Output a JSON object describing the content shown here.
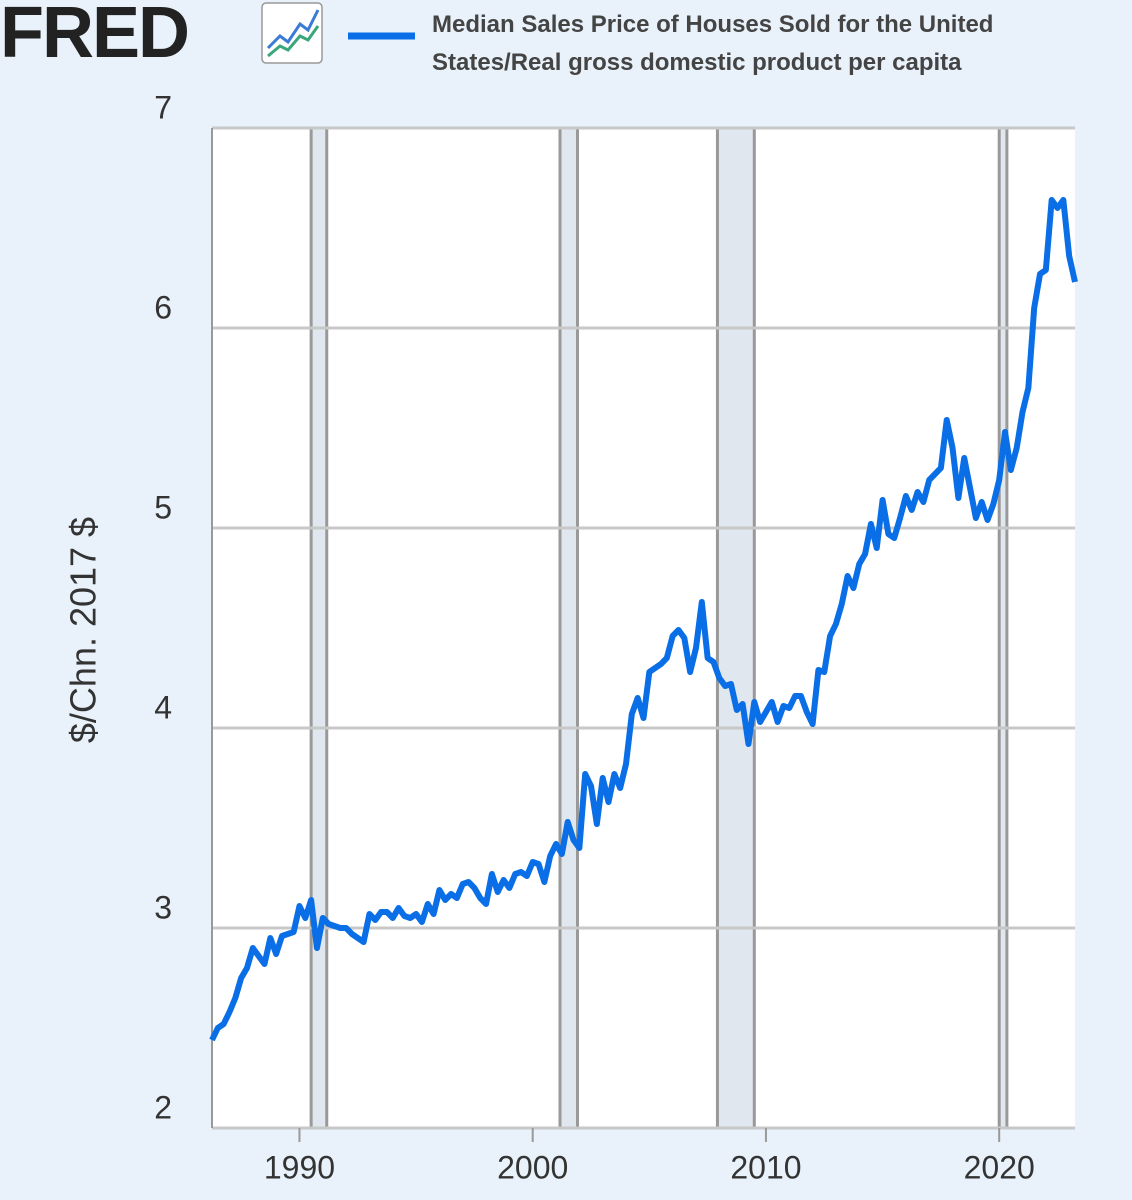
{
  "logo": "FRED",
  "chart_data": {
    "type": "line",
    "y_label": "$/Chn. 2017 $",
    "x": [
      1986.25,
      1986.5,
      1986.75,
      1987.0,
      1987.25,
      1987.5,
      1987.75,
      1988.0,
      1988.25,
      1988.5,
      1988.75,
      1989.0,
      1989.25,
      1989.5,
      1989.75,
      1990.0,
      1990.25,
      1990.5,
      1990.75,
      1991.0,
      1991.25,
      1991.5,
      1991.75,
      1992.0,
      1992.25,
      1992.5,
      1992.75,
      1993.0,
      1993.25,
      1993.5,
      1993.75,
      1994.0,
      1994.25,
      1994.5,
      1994.75,
      1995.0,
      1995.25,
      1995.5,
      1995.75,
      1996.0,
      1996.25,
      1996.5,
      1996.75,
      1997.0,
      1997.25,
      1997.5,
      1997.75,
      1998.0,
      1998.25,
      1998.5,
      1998.75,
      1999.0,
      1999.25,
      1999.5,
      1999.75,
      2000.0,
      2000.25,
      2000.5,
      2000.75,
      2001.0,
      2001.25,
      2001.5,
      2001.75,
      2002.0,
      2002.25,
      2002.5,
      2002.75,
      2003.0,
      2003.25,
      2003.5,
      2003.75,
      2004.0,
      2004.25,
      2004.5,
      2004.75,
      2005.0,
      2005.25,
      2005.5,
      2005.75,
      2006.0,
      2006.25,
      2006.5,
      2006.75,
      2007.0,
      2007.25,
      2007.5,
      2007.75,
      2008.0,
      2008.25,
      2008.5,
      2008.75,
      2009.0,
      2009.25,
      2009.5,
      2009.75,
      2010.0,
      2010.25,
      2010.5,
      2010.75,
      2011.0,
      2011.25,
      2011.5,
      2011.75,
      2012.0,
      2012.25,
      2012.5,
      2012.75,
      2013.0,
      2013.25,
      2013.5,
      2013.75,
      2014.0,
      2014.25,
      2014.5,
      2014.75,
      2015.0,
      2015.25,
      2015.5,
      2015.75,
      2016.0,
      2016.25,
      2016.5,
      2016.75,
      2017.0,
      2017.25,
      2017.5,
      2017.75,
      2018.0,
      2018.25,
      2018.5,
      2018.75,
      2019.0,
      2019.25,
      2019.5,
      2019.75,
      2020.0,
      2020.25,
      2020.5,
      2020.75,
      2021.0,
      2021.25,
      2021.5,
      2021.75,
      2022.0,
      2022.25,
      2022.5,
      2022.75,
      2023.0,
      2023.25
    ],
    "series": [
      {
        "name": "Median Sales Price of Houses Sold for the United States/Real gross domestic product per capita",
        "color": "#0a6fe6",
        "values": [
          2.44,
          2.5,
          2.52,
          2.58,
          2.65,
          2.75,
          2.8,
          2.9,
          2.86,
          2.82,
          2.95,
          2.87,
          2.96,
          2.97,
          2.98,
          3.11,
          3.05,
          3.14,
          2.9,
          3.05,
          3.02,
          3.01,
          3.0,
          3.0,
          2.97,
          2.95,
          2.93,
          3.07,
          3.04,
          3.08,
          3.08,
          3.05,
          3.1,
          3.06,
          3.05,
          3.07,
          3.03,
          3.12,
          3.07,
          3.19,
          3.14,
          3.17,
          3.15,
          3.22,
          3.23,
          3.2,
          3.15,
          3.12,
          3.27,
          3.18,
          3.24,
          3.2,
          3.27,
          3.28,
          3.26,
          3.33,
          3.32,
          3.23,
          3.36,
          3.42,
          3.37,
          3.53,
          3.44,
          3.4,
          3.77,
          3.71,
          3.52,
          3.75,
          3.63,
          3.77,
          3.7,
          3.82,
          4.07,
          4.15,
          4.05,
          4.28,
          4.3,
          4.32,
          4.35,
          4.46,
          4.49,
          4.45,
          4.28,
          4.4,
          4.63,
          4.35,
          4.33,
          4.25,
          4.21,
          4.22,
          4.09,
          4.12,
          3.92,
          4.13,
          4.03,
          4.08,
          4.13,
          4.03,
          4.11,
          4.1,
          4.16,
          4.16,
          4.08,
          4.02,
          4.29,
          4.28,
          4.46,
          4.52,
          4.62,
          4.76,
          4.7,
          4.82,
          4.87,
          5.02,
          4.9,
          5.14,
          4.97,
          4.95,
          5.05,
          5.16,
          5.09,
          5.18,
          5.13,
          5.24,
          5.27,
          5.3,
          5.54,
          5.4,
          5.15,
          5.35,
          5.2,
          5.05,
          5.13,
          5.04,
          5.12,
          5.24,
          5.48,
          5.29,
          5.4,
          5.58,
          5.7,
          6.1,
          6.27,
          6.29,
          6.64,
          6.6,
          6.64,
          6.36,
          6.23
        ]
      }
    ],
    "xlim": [
      1986.25,
      2023.25
    ],
    "xticks": [
      1990,
      2000,
      2010,
      2020
    ],
    "ylim": [
      2,
      7
    ],
    "yticks": [
      2,
      3,
      4,
      5,
      6,
      7
    ],
    "grid": true,
    "recessions": [
      [
        1990.5,
        1991.17
      ],
      [
        2001.17,
        2001.92
      ],
      [
        2007.92,
        2009.5
      ],
      [
        2020.0,
        2020.33
      ]
    ]
  }
}
